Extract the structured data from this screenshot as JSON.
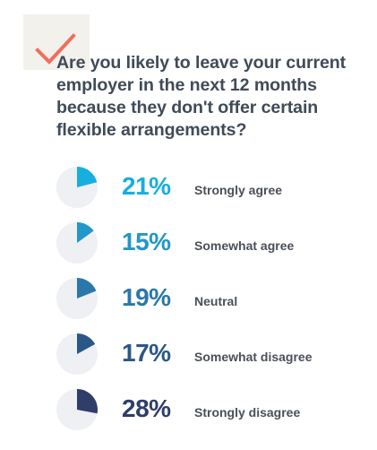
{
  "question": "Are you likely to leave your current employer in the next 12 months because they don't offer certain flexible arrangements?",
  "icons": {
    "check": "check-mark-icon",
    "check_color": "#ef6f5e"
  },
  "chart_data": {
    "type": "pie",
    "title": "Are you likely to leave your current employer in the next 12 months because they don't offer certain flexible arrangements?",
    "categories": [
      "Strongly agree",
      "Somewhat agree",
      "Neutral",
      "Somewhat disagree",
      "Strongly disagree"
    ],
    "values": [
      21,
      15,
      19,
      17,
      28
    ],
    "labels": [
      "21%",
      "15%",
      "19%",
      "17%",
      "28%"
    ],
    "colors": [
      "#17aee0",
      "#2297c9",
      "#2a78a9",
      "#2a5786",
      "#2f3d68"
    ],
    "background_color": "#eef0f4"
  }
}
